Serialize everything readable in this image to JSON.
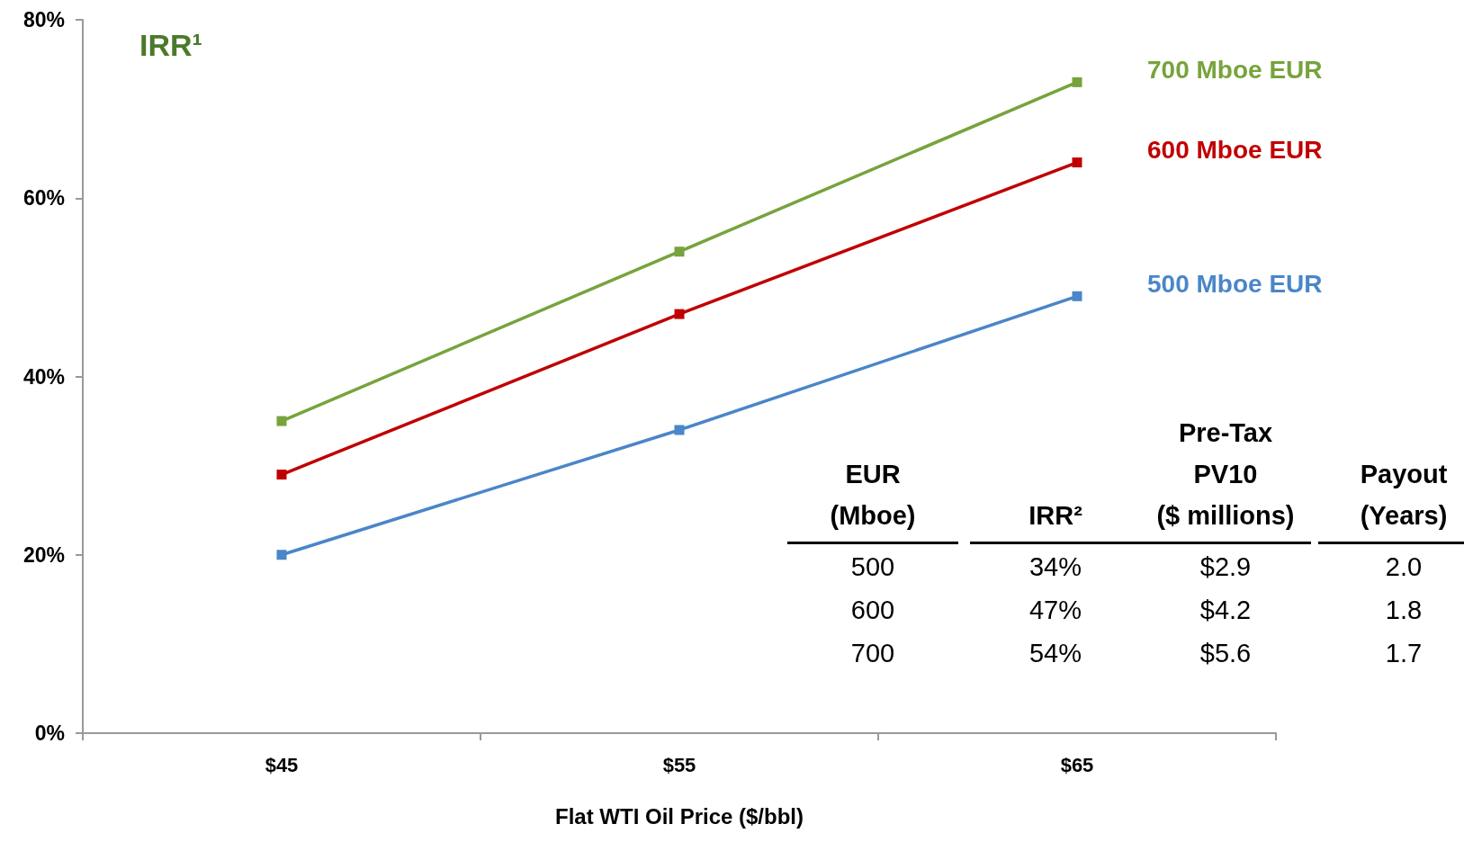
{
  "chart_data": {
    "type": "line",
    "title": "IRR¹",
    "xlabel": "Flat WTI Oil Price ($/bbl)",
    "categories": [
      "$45",
      "$55",
      "$65"
    ],
    "series": [
      {
        "name": "700 Mboe EUR",
        "color": "#77a33c",
        "values": [
          35,
          54,
          73
        ]
      },
      {
        "name": "600 Mboe EUR",
        "color": "#c00000",
        "values": [
          29,
          47,
          64
        ]
      },
      {
        "name": "500 Mboe EUR",
        "color": "#4a86c8",
        "values": [
          20,
          34,
          49
        ]
      }
    ],
    "ylim": [
      0,
      80
    ],
    "yticks": [
      {
        "value": 0,
        "label": "0%"
      },
      {
        "value": 20,
        "label": "20%"
      },
      {
        "value": 40,
        "label": "40%"
      },
      {
        "value": 60,
        "label": "60%"
      },
      {
        "value": 80,
        "label": "80%"
      }
    ],
    "grid": false,
    "legend": false,
    "marker": "square",
    "line_style": "solid",
    "annotations": [
      "EUR\n(Mboe)",
      "IRR²",
      "Pre-Tax\nPV10\n($ millions)",
      "Payout\n(Years)",
      "500",
      "34%",
      "$2.9",
      "2.0",
      "600",
      "47%",
      "$4.2",
      "1.8",
      "700",
      "54%",
      "$5.6",
      "1.7"
    ]
  }
}
